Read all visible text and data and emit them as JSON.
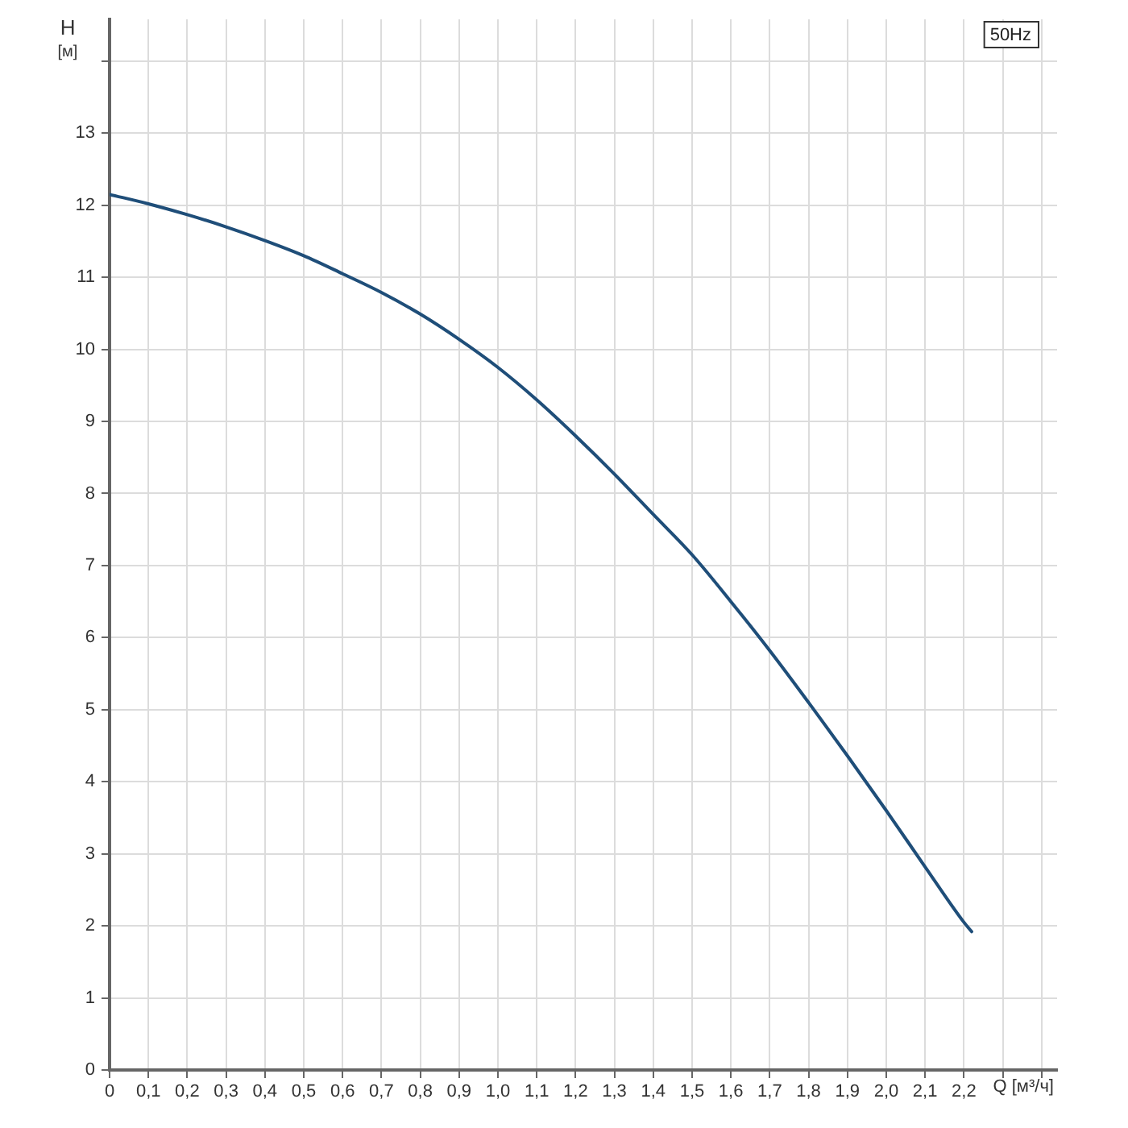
{
  "chart_data": {
    "type": "line",
    "xlabel": "Q [м³/ч]",
    "ylabel": "H [м]",
    "annotations": [
      "50Hz"
    ],
    "x": [
      0,
      0.1,
      0.2,
      0.3,
      0.4,
      0.5,
      0.6,
      0.7,
      0.8,
      0.9,
      1.0,
      1.1,
      1.2,
      1.3,
      1.4,
      1.5,
      1.6,
      1.7,
      1.8,
      1.9,
      2.0,
      2.1,
      2.2,
      2.22
    ],
    "series": [
      {
        "color": "#1f4e79",
        "values": [
          12.15,
          12.02,
          11.87,
          11.7,
          11.51,
          11.3,
          11.05,
          10.79,
          10.49,
          10.14,
          9.75,
          9.3,
          8.8,
          8.27,
          7.71,
          7.15,
          6.5,
          5.82,
          5.1,
          4.36,
          3.6,
          2.82,
          2.05,
          1.92
        ]
      }
    ],
    "xlim": [
      0,
      2.44
    ],
    "xticks": [
      0,
      {
        "value": 0.1,
        "label": "0,1"
      },
      {
        "value": 0.2,
        "label": "0,2"
      },
      {
        "value": 0.3,
        "label": "0,3"
      },
      {
        "value": 0.4,
        "label": "0,4"
      },
      {
        "value": 0.5,
        "label": "0,5"
      },
      {
        "value": 0.6,
        "label": "0,6"
      },
      {
        "value": 0.7,
        "label": "0,7"
      },
      {
        "value": 0.8,
        "label": "0,8"
      },
      {
        "value": 0.9,
        "label": "0,9"
      },
      {
        "value": 1.0,
        "label": "1,0"
      },
      {
        "value": 1.1,
        "label": "1,1"
      },
      {
        "value": 1.2,
        "label": "1,2"
      },
      {
        "value": 1.3,
        "label": "1,3"
      },
      {
        "value": 1.4,
        "label": "1,4"
      },
      {
        "value": 1.5,
        "label": "1,5"
      },
      {
        "value": 1.6,
        "label": "1,6"
      },
      {
        "value": 1.7,
        "label": "1,7"
      },
      {
        "value": 1.8,
        "label": "1,8"
      },
      {
        "value": 1.9,
        "label": "1,9"
      },
      {
        "value": 2.0,
        "label": "2,0"
      },
      {
        "value": 2.1,
        "label": "2,1"
      },
      {
        "value": 2.2,
        "label": "2,2"
      },
      {
        "value": 2.3,
        "label": null
      },
      {
        "value": 2.4,
        "label": null
      }
    ],
    "ylim": [
      0,
      14.58
    ],
    "yticks": [
      0,
      1,
      2,
      3,
      4,
      5,
      6,
      7,
      8,
      9,
      10,
      11,
      12,
      13,
      {
        "value": 14,
        "label": null
      }
    ],
    "grid": true,
    "legend": false,
    "marker": "none",
    "line_style": "solid"
  }
}
